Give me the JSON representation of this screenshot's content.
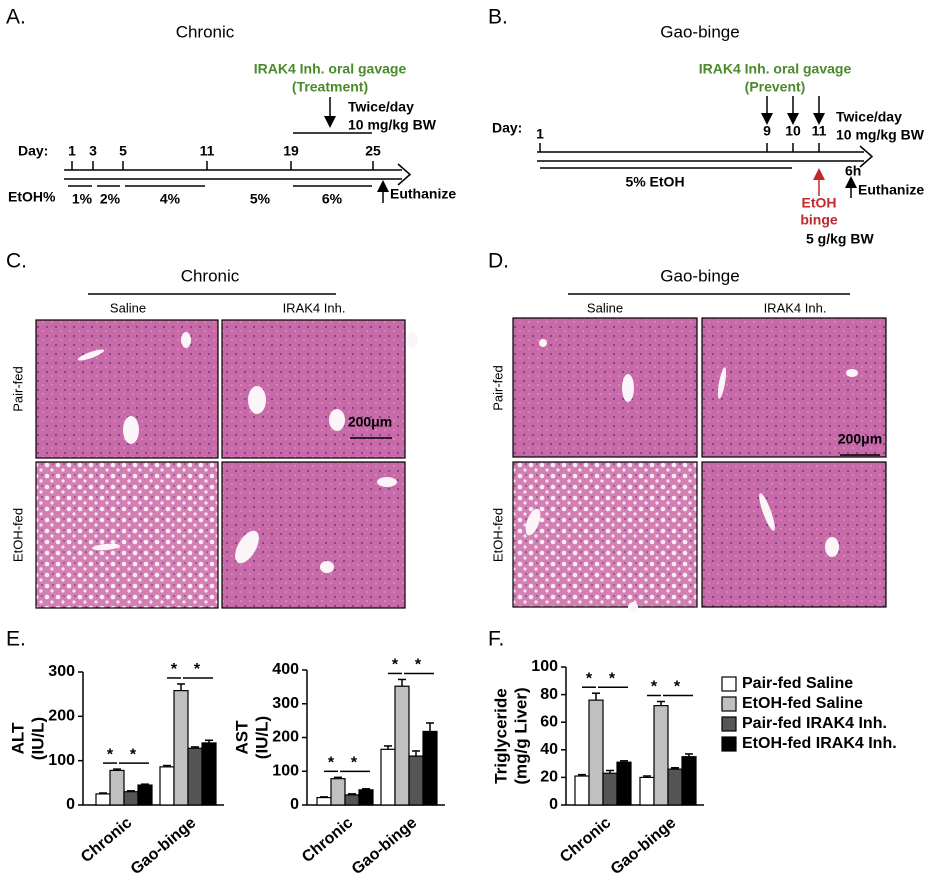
{
  "panel_a": {
    "label": "A.",
    "title": "Chronic",
    "treatment": [
      "IRAK4 Inh. oral gavage",
      "(Treatment)"
    ],
    "dosing": [
      "Twice/day",
      "10 mg/kg BW"
    ],
    "day_label": "Day:",
    "days": [
      1,
      3,
      5,
      11,
      19,
      25
    ],
    "etoh_label": "EtOH%",
    "etoh_steps": [
      "1%",
      "2%",
      "4%",
      "5%",
      "6%"
    ],
    "end": "Euthanize"
  },
  "panel_b": {
    "label": "B.",
    "title": "Gao-binge",
    "treatment": [
      "IRAK4 Inh. oral gavage",
      "(Prevent)"
    ],
    "dosing": [
      "Twice/day",
      "10 mg/kg BW"
    ],
    "day_label": "Day:",
    "days": [
      1,
      9,
      10,
      11
    ],
    "diet": "5%  EtOH",
    "binge": [
      "EtOH",
      "binge"
    ],
    "binge_dose": "5 g/kg BW",
    "delay": "6h",
    "end": "Euthanize"
  },
  "panel_c": {
    "label": "C.",
    "title": "Chronic",
    "columns": [
      "Saline",
      "IRAK4 Inh."
    ],
    "rows": [
      "Pair-fed",
      "EtOH-fed"
    ],
    "scale_bar": "200μm"
  },
  "panel_d": {
    "label": "D.",
    "title": "Gao-binge",
    "columns": [
      "Saline",
      "IRAK4 Inh."
    ],
    "rows": [
      "Pair-fed",
      "EtOH-fed"
    ],
    "scale_bar": "200μm"
  },
  "panel_e_label": "E.",
  "panel_f_label": "F.",
  "chart_data": [
    {
      "type": "bar",
      "ylabel": [
        "ALT",
        "(IU/L)"
      ],
      "categories": [
        "Chronic",
        "Gao-binge"
      ],
      "ylim": [
        0,
        300
      ],
      "yticks": [
        0,
        100,
        200,
        300
      ],
      "significance": [
        "*",
        "*",
        "*",
        "*"
      ],
      "series": [
        {
          "color": "#ffffff",
          "values": [
            25,
            86
          ],
          "errors": [
            2,
            3
          ]
        },
        {
          "color": "#c0c0c0",
          "values": [
            78,
            258
          ],
          "errors": [
            3,
            15
          ]
        },
        {
          "color": "#555555",
          "values": [
            30,
            128
          ],
          "errors": [
            2,
            3
          ]
        },
        {
          "color": "#000000",
          "values": [
            45,
            140
          ],
          "errors": [
            2,
            6
          ]
        }
      ]
    },
    {
      "type": "bar",
      "ylabel": [
        "AST",
        "(IU/L)"
      ],
      "categories": [
        "Chronic",
        "Gao-binge"
      ],
      "ylim": [
        0,
        400
      ],
      "yticks": [
        0,
        100,
        200,
        300,
        400
      ],
      "significance": [
        "*",
        "*",
        "*",
        "*"
      ],
      "series": [
        {
          "color": "#ffffff",
          "values": [
            22,
            165
          ],
          "errors": [
            2,
            10
          ]
        },
        {
          "color": "#c0c0c0",
          "values": [
            78,
            352
          ],
          "errors": [
            4,
            20
          ]
        },
        {
          "color": "#555555",
          "values": [
            30,
            145
          ],
          "errors": [
            3,
            15
          ]
        },
        {
          "color": "#000000",
          "values": [
            45,
            218
          ],
          "errors": [
            3,
            25
          ]
        }
      ]
    },
    {
      "type": "bar",
      "ylabel": [
        "Triglyceride",
        "(mg/g Liver)"
      ],
      "categories": [
        "Chronic",
        "Gao-binge"
      ],
      "ylim": [
        0,
        100
      ],
      "yticks": [
        0,
        20,
        40,
        60,
        80,
        100
      ],
      "significance": [
        "*",
        "*",
        "*",
        "*"
      ],
      "series": [
        {
          "name": "Pair-fed Saline",
          "color": "#ffffff",
          "values": [
            21,
            20
          ],
          "errors": [
            1,
            1
          ]
        },
        {
          "name": "EtOH-fed Saline",
          "color": "#c0c0c0",
          "values": [
            76,
            72
          ],
          "errors": [
            5,
            3
          ]
        },
        {
          "name": "Pair-fed IRAK4 Inh.",
          "color": "#555555",
          "values": [
            23,
            26
          ],
          "errors": [
            2,
            1
          ]
        },
        {
          "name": "EtOH-fed IRAK4 Inh.",
          "color": "#000000",
          "values": [
            31,
            35
          ],
          "errors": [
            1,
            2
          ]
        }
      ]
    }
  ]
}
